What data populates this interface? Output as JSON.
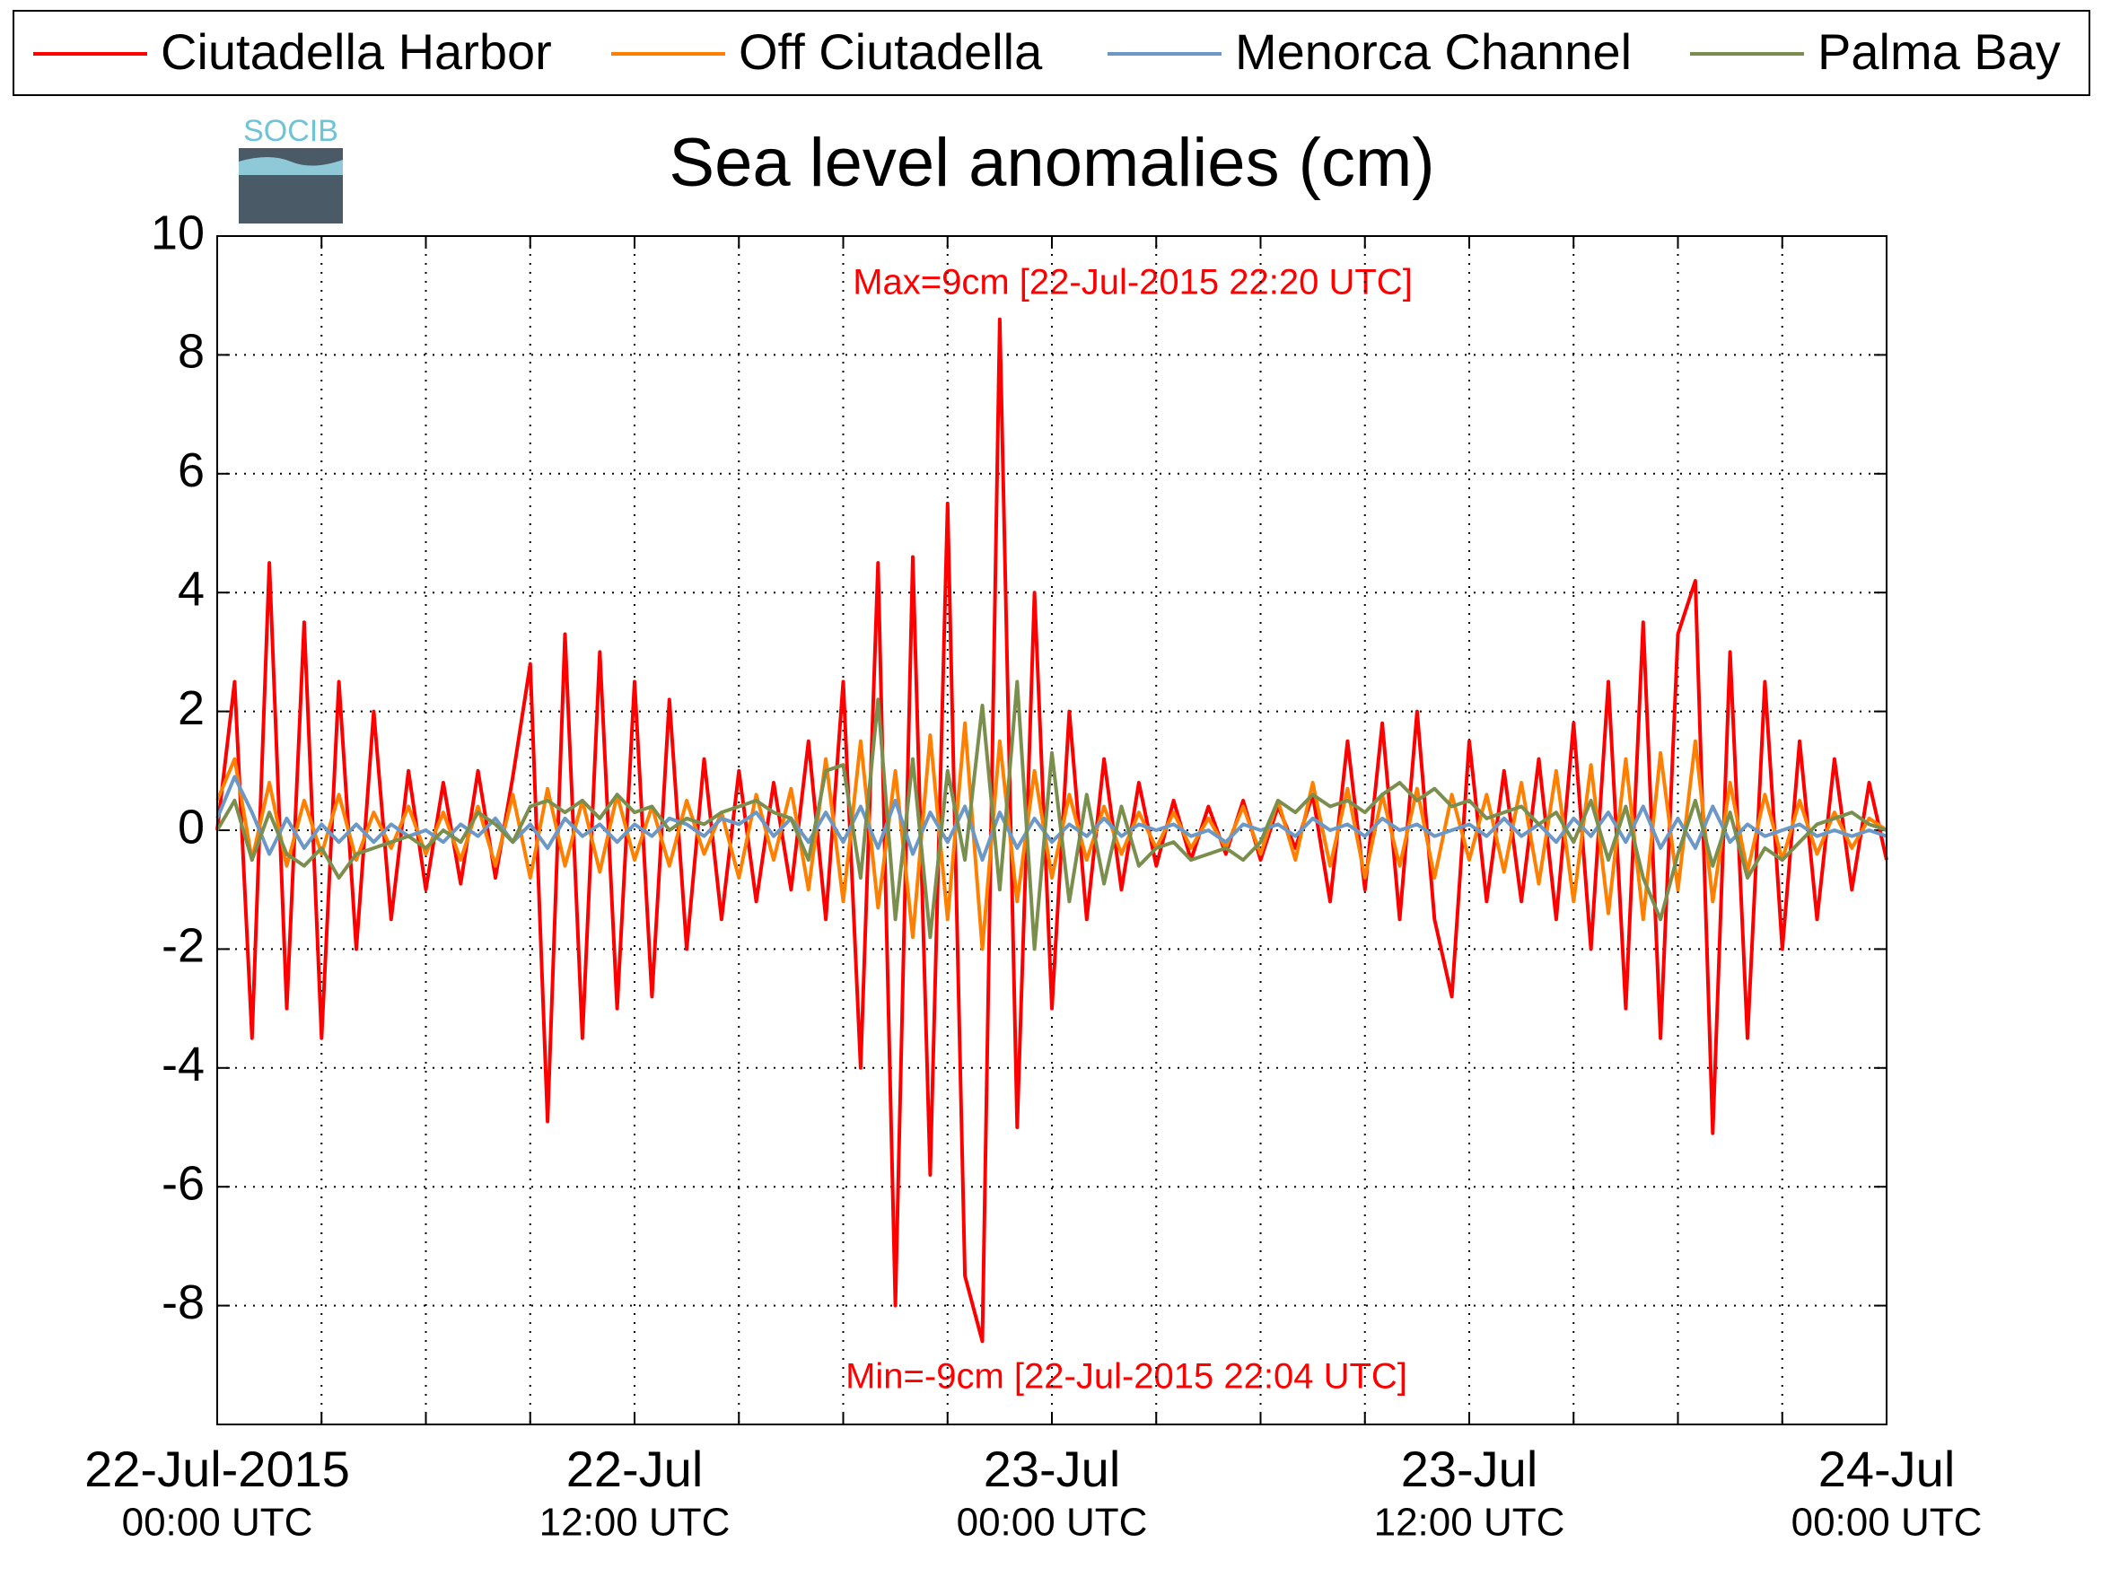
{
  "chart_data": {
    "type": "line",
    "title": "Sea level anomalies (cm)",
    "logo": "SOCIB",
    "annotations": [
      "Max=9cm [22-Jul-2015 22:20 UTC]",
      "Min=-9cm [22-Jul-2015 22:04 UTC]"
    ],
    "x": [
      0,
      0.5,
      1,
      1.5,
      2,
      2.5,
      3,
      3.5,
      4,
      4.5,
      5,
      5.5,
      6,
      6.5,
      7,
      7.5,
      8,
      8.5,
      9,
      9.5,
      10,
      10.5,
      11,
      11.5,
      12,
      12.5,
      13,
      13.5,
      14,
      14.5,
      15,
      15.5,
      16,
      16.5,
      17,
      17.5,
      18,
      18.5,
      19,
      19.5,
      20,
      20.5,
      21,
      21.5,
      22,
      22.5,
      23,
      23.5,
      24,
      24.5,
      25,
      25.5,
      26,
      26.5,
      27,
      27.5,
      28,
      28.5,
      29,
      29.5,
      30,
      30.5,
      31,
      31.5,
      32,
      32.5,
      33,
      33.5,
      34,
      34.5,
      35,
      35.5,
      36,
      36.5,
      37,
      37.5,
      38,
      38.5,
      39,
      39.5,
      40,
      40.5,
      41,
      41.5,
      42,
      42.5,
      43,
      43.5,
      44,
      44.5,
      45,
      45.5,
      46,
      46.5,
      47,
      47.5,
      48
    ],
    "series": [
      {
        "name": "Ciutadella Harbor",
        "color": "#ff0000",
        "values": [
          0,
          2.5,
          -3.5,
          4.5,
          -3,
          3.5,
          -3.5,
          2.5,
          -2,
          2,
          -1.5,
          1,
          -1,
          0.8,
          -0.9,
          1,
          -0.8,
          0.9,
          2.8,
          -4.9,
          3.3,
          -3.5,
          3,
          -3,
          2.5,
          -2.8,
          2.2,
          -2,
          1.2,
          -1.5,
          1,
          -1.2,
          0.8,
          -1,
          1.5,
          -1.5,
          2.5,
          -4,
          4.5,
          -8,
          4.6,
          -5.8,
          5.5,
          -7.5,
          -8.6,
          8.6,
          -5,
          4,
          -3,
          2,
          -1.5,
          1.2,
          -1,
          0.8,
          -0.6,
          0.5,
          -0.5,
          0.4,
          -0.4,
          0.5,
          -0.5,
          0.4,
          -0.3,
          0.6,
          -1.2,
          1.5,
          -1,
          1.8,
          -1.5,
          2,
          -1.5,
          -2.8,
          1.5,
          -1.2,
          1,
          -1.2,
          1.2,
          -1.5,
          1.8,
          -2,
          2.5,
          -3,
          3.5,
          -3.5,
          3.3,
          4.2,
          -5.1,
          3,
          -3.5,
          2.5,
          -2,
          1.5,
          -1.5,
          1.2,
          -1,
          0.8,
          -0.5
        ]
      },
      {
        "name": "Off Ciutadella",
        "color": "#ff8000",
        "values": [
          0.5,
          1.2,
          -0.5,
          0.8,
          -0.6,
          0.5,
          -0.4,
          0.6,
          -0.5,
          0.3,
          -0.3,
          0.4,
          -0.4,
          0.3,
          -0.5,
          0.4,
          -0.6,
          0.6,
          -0.8,
          0.7,
          -0.6,
          0.5,
          -0.7,
          0.6,
          -0.5,
          0.4,
          -0.6,
          0.5,
          -0.4,
          0.3,
          -0.8,
          0.6,
          -0.5,
          0.7,
          -1.0,
          1.2,
          -1.2,
          1.5,
          -1.3,
          1.0,
          -1.8,
          1.6,
          -1.5,
          1.8,
          -2.0,
          1.5,
          -1.2,
          1.0,
          -0.8,
          0.6,
          -0.5,
          0.4,
          -0.4,
          0.3,
          -0.3,
          0.3,
          -0.3,
          0.2,
          -0.3,
          0.4,
          -0.4,
          0.5,
          -0.5,
          0.8,
          -0.6,
          0.7,
          -0.8,
          0.6,
          -0.6,
          0.7,
          -0.8,
          0.6,
          -0.5,
          0.6,
          -0.7,
          0.8,
          -0.9,
          1.0,
          -1.2,
          1.1,
          -1.4,
          1.2,
          -1.5,
          1.3,
          -1.0,
          1.5,
          -1.2,
          0.8,
          -0.7,
          0.6,
          -0.5,
          0.5,
          -0.4,
          0.3,
          -0.3,
          0.2,
          0
        ]
      },
      {
        "name": "Menorca Channel",
        "color": "#6b98c6",
        "values": [
          0.2,
          0.9,
          0.3,
          -0.4,
          0.2,
          -0.3,
          0.1,
          -0.2,
          0.1,
          -0.2,
          0.1,
          -0.1,
          0,
          -0.2,
          0.1,
          -0.1,
          0.2,
          -0.2,
          0.1,
          -0.3,
          0.2,
          -0.1,
          0.1,
          -0.2,
          0.1,
          -0.1,
          0.2,
          0.1,
          -0.1,
          0.2,
          0.1,
          0.3,
          -0.1,
          0.2,
          -0.2,
          0.3,
          -0.2,
          0.4,
          -0.3,
          0.5,
          -0.4,
          0.3,
          -0.2,
          0.4,
          -0.5,
          0.3,
          -0.3,
          0.2,
          -0.2,
          0.1,
          -0.1,
          0.2,
          -0.1,
          0.1,
          0,
          0.1,
          -0.1,
          0,
          -0.2,
          0.1,
          0,
          0.1,
          -0.1,
          0.2,
          0,
          0.1,
          -0.1,
          0.2,
          0,
          0.1,
          -0.1,
          0,
          0.1,
          -0.1,
          0.2,
          -0.1,
          0.1,
          -0.2,
          0.2,
          -0.1,
          0.3,
          -0.2,
          0.4,
          -0.3,
          0.2,
          -0.3,
          0.4,
          -0.2,
          0.1,
          -0.1,
          0,
          0.1,
          -0.1,
          0,
          -0.1,
          0,
          -0.1
        ]
      },
      {
        "name": "Palma Bay",
        "color": "#7a8f4e",
        "values": [
          0,
          0.5,
          -0.5,
          0.3,
          -0.4,
          -0.6,
          -0.3,
          -0.8,
          -0.4,
          -0.3,
          -0.2,
          -0.1,
          -0.3,
          0,
          -0.2,
          0.3,
          0.1,
          -0.2,
          0.4,
          0.5,
          0.3,
          0.5,
          0.2,
          0.6,
          0.3,
          0.4,
          0,
          0.2,
          0.1,
          0.3,
          0.4,
          0.5,
          0.3,
          0.2,
          -0.5,
          1.0,
          1.1,
          -0.8,
          2.2,
          -1.5,
          1.2,
          -1.8,
          1.0,
          -0.5,
          2.1,
          -1.0,
          2.5,
          -2.0,
          1.3,
          -1.2,
          0.6,
          -0.9,
          0.4,
          -0.6,
          -0.3,
          -0.2,
          -0.5,
          -0.4,
          -0.3,
          -0.5,
          -0.2,
          0.5,
          0.3,
          0.6,
          0.4,
          0.5,
          0.3,
          0.6,
          0.8,
          0.5,
          0.7,
          0.4,
          0.5,
          0.2,
          0.3,
          0.4,
          0.1,
          0.3,
          -0.2,
          0.5,
          -0.5,
          0.4,
          -0.8,
          -1.5,
          -0.4,
          0.5,
          -0.6,
          0.3,
          -0.8,
          -0.3,
          -0.5,
          -0.2,
          0.1,
          0.2,
          0.3,
          0.1,
          0
        ]
      }
    ],
    "xlim": [
      0,
      48
    ],
    "xticks": [
      {
        "value": 0,
        "label": "22-Jul-2015",
        "sublabel": "00:00 UTC"
      },
      {
        "value": 12,
        "label": "22-Jul",
        "sublabel": "12:00 UTC"
      },
      {
        "value": 24,
        "label": "23-Jul",
        "sublabel": "00:00 UTC"
      },
      {
        "value": 36,
        "label": "23-Jul",
        "sublabel": "12:00 UTC"
      },
      {
        "value": 48,
        "label": "24-Jul",
        "sublabel": "00:00 UTC"
      }
    ],
    "xgrid": [
      3,
      6,
      9,
      12,
      15,
      18,
      21,
      24,
      27,
      30,
      33,
      36,
      39,
      42,
      45
    ],
    "ylim": [
      -10,
      10
    ],
    "yticks": [
      -8,
      -6,
      -4,
      -2,
      0,
      2,
      4,
      6,
      8,
      10
    ],
    "grid": true,
    "legend": "top"
  }
}
